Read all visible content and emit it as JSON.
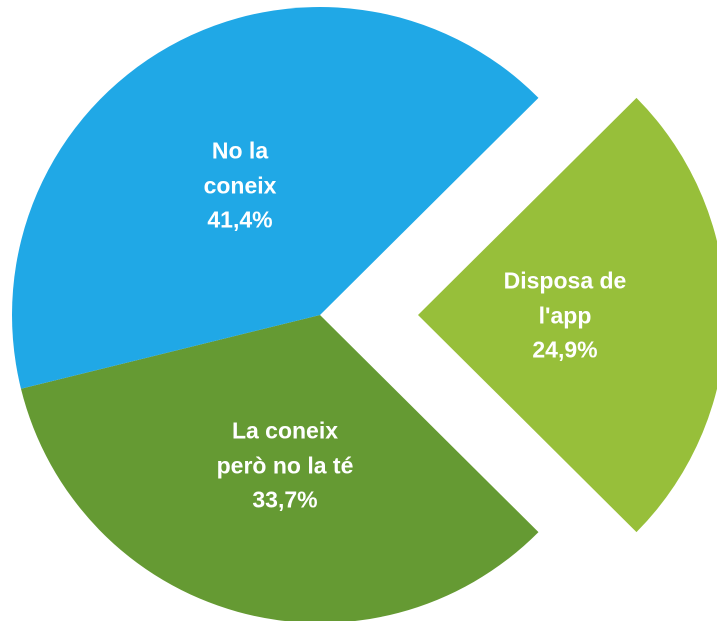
{
  "chart_data": {
    "type": "pie",
    "categories": [
      "Disposa de l'app",
      "La coneix però no la té",
      "No la coneix"
    ],
    "values": [
      24.9,
      33.7,
      41.4
    ],
    "value_labels": [
      "24,9%",
      "33,7%",
      "41,4%"
    ],
    "colors": [
      "#97bf3a",
      "#659a33",
      "#20a8e6"
    ]
  }
}
